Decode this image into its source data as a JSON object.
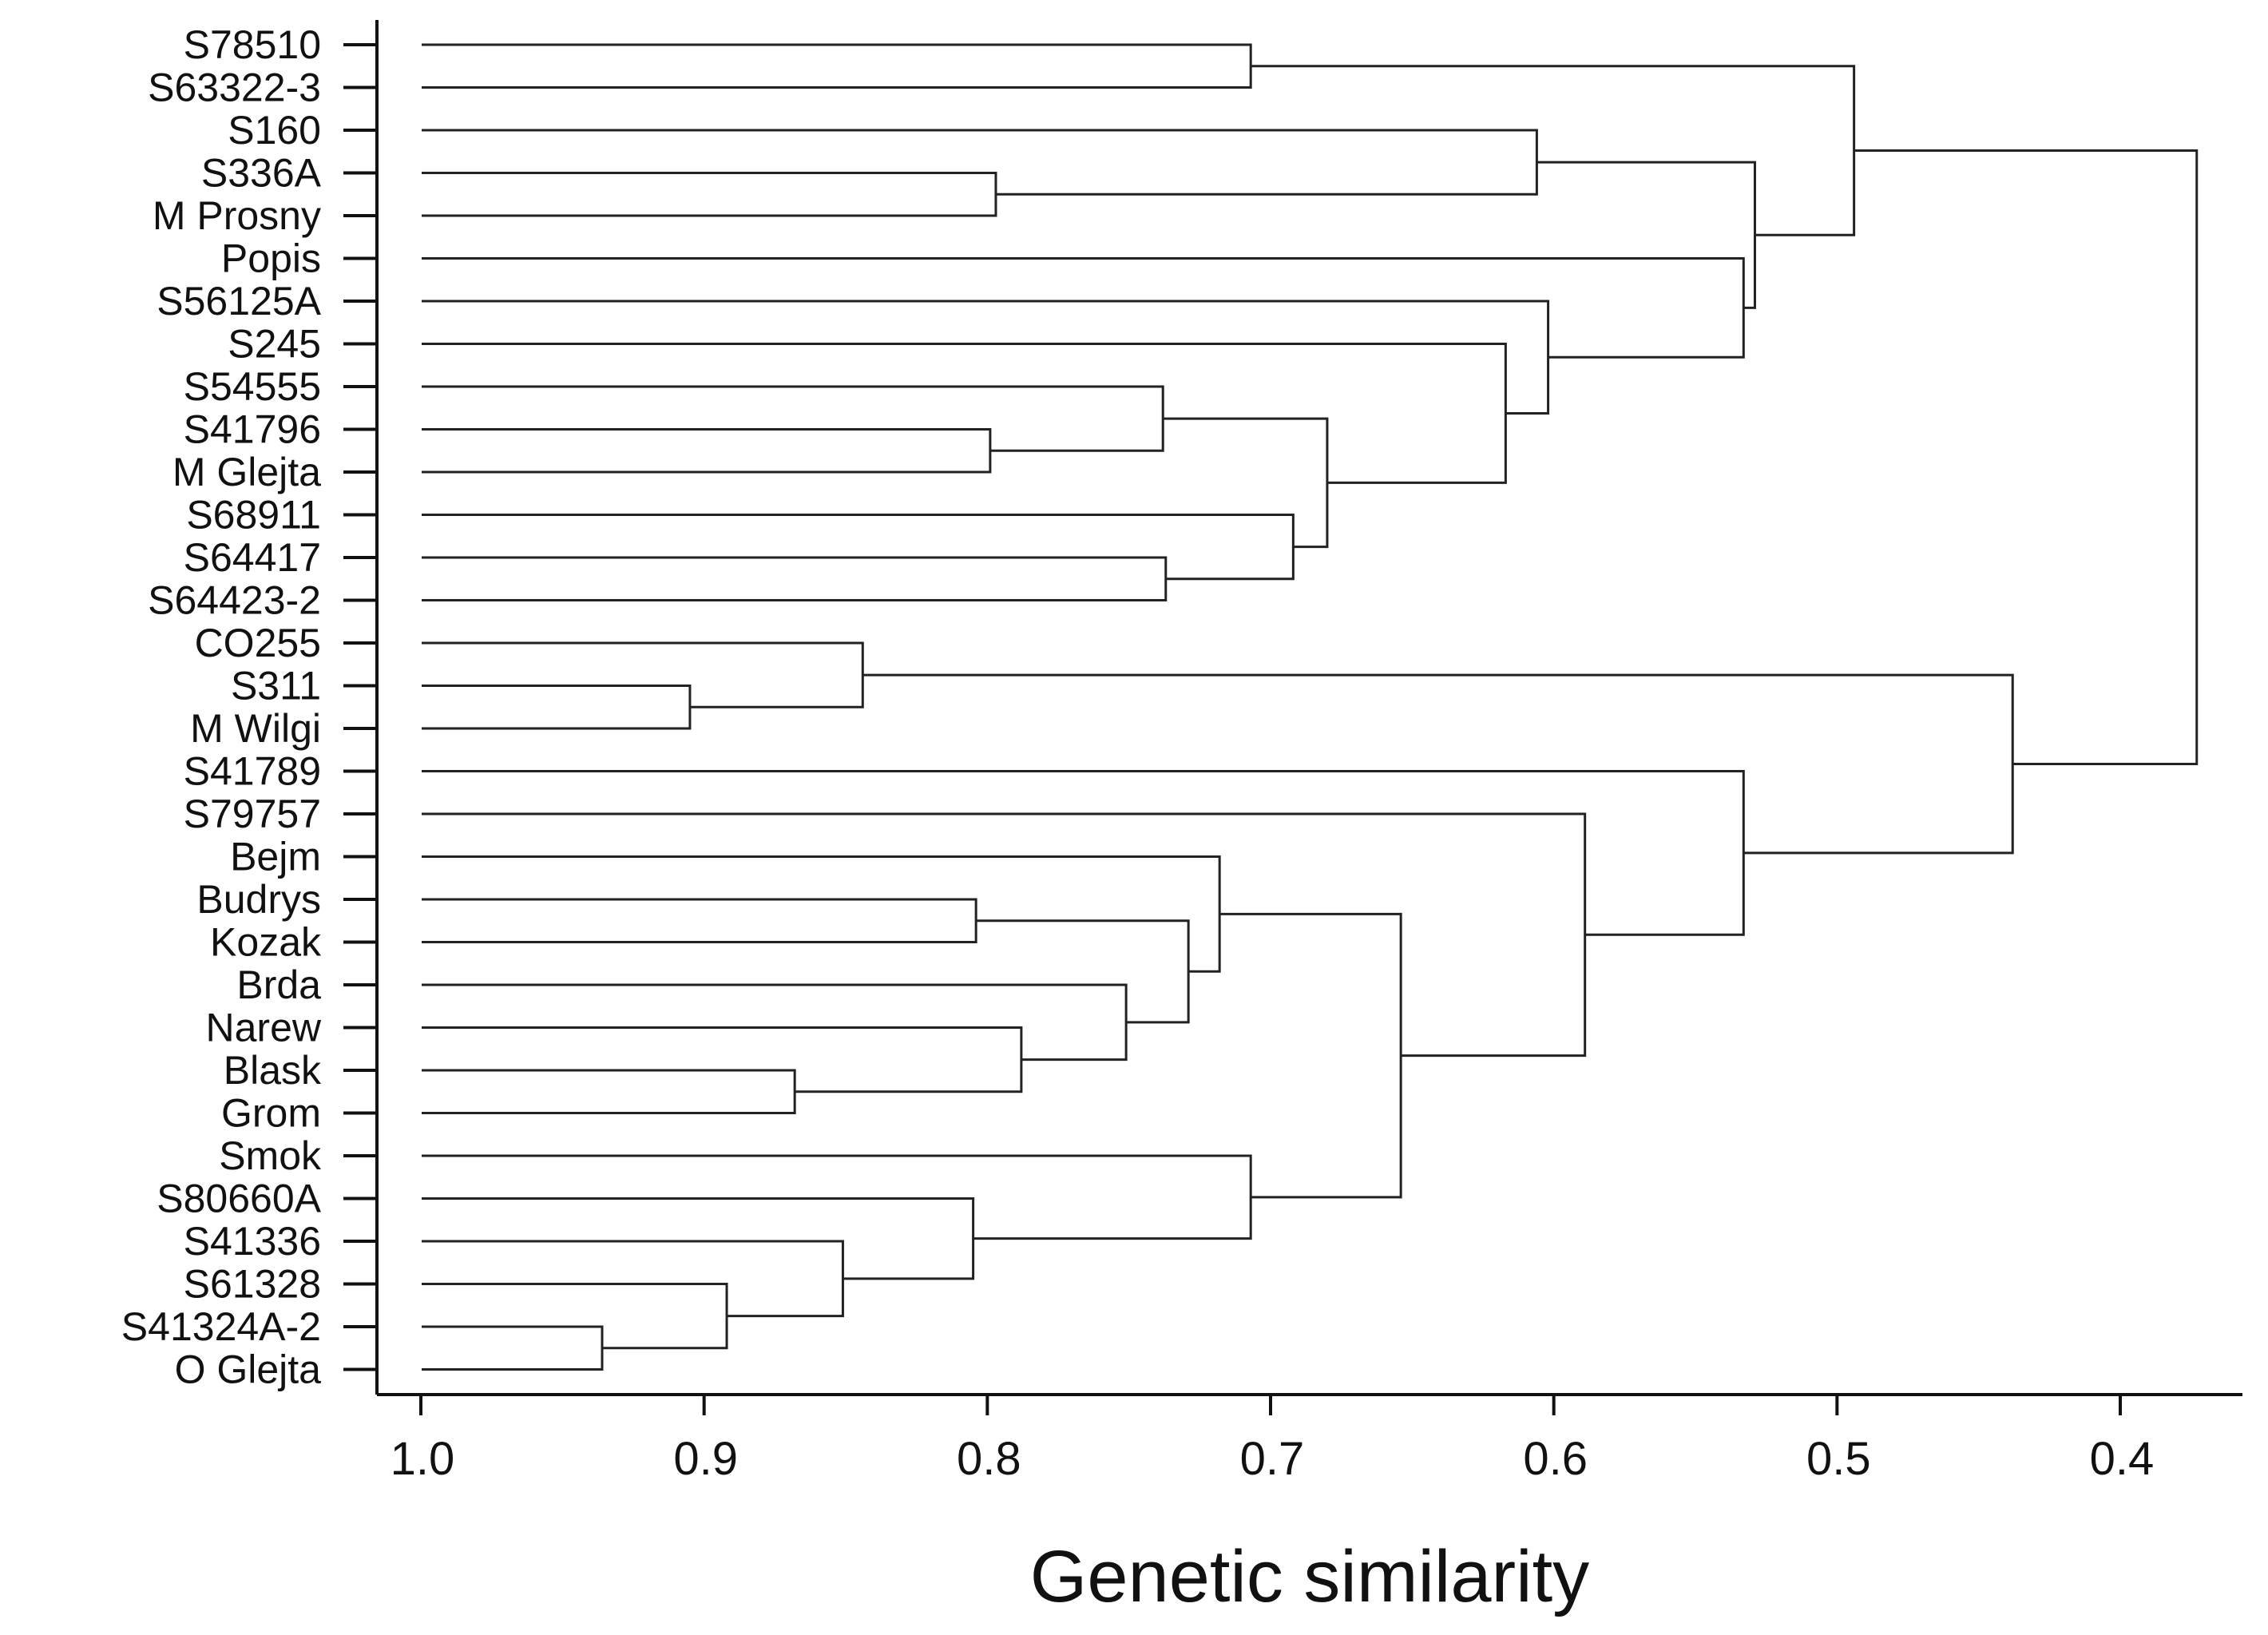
{
  "chart_data": {
    "type": "dendrogram",
    "title": "",
    "xlabel": "Genetic similarity",
    "ylabel": "",
    "xlim": [
      1.0,
      0.35
    ],
    "x_ticks": [
      {
        "value": 1.0,
        "label": "1.0"
      },
      {
        "value": 0.9,
        "label": "0.9"
      },
      {
        "value": 0.8,
        "label": "0.8"
      },
      {
        "value": 0.7,
        "label": "0.7"
      },
      {
        "value": 0.6,
        "label": "0.6"
      },
      {
        "value": 0.5,
        "label": "0.5"
      },
      {
        "value": 0.4,
        "label": "0.4"
      }
    ],
    "leaves": [
      "S78510",
      "S63322-3",
      "S160",
      "S336A",
      "M Prosny",
      "Popis",
      "S56125A",
      "S245",
      "S54555",
      "S41796",
      "M Glejta",
      "S68911",
      "S64417",
      "S64423-2",
      "CO255",
      "S311",
      "M Wilgi",
      "S41789",
      "S79757",
      "Bejm",
      "Budrys",
      "Kozak",
      "Brda",
      "Narew",
      "Blask",
      "Grom",
      "Smok",
      "S80660A",
      "S41336",
      "S61328",
      "S41324A-2",
      "O Glejta"
    ],
    "merges": [
      {
        "id": "n1",
        "left": "S78510",
        "right": "S63322-3",
        "similarity": 0.707
      },
      {
        "id": "n2",
        "left": "S336A",
        "right": "M Prosny",
        "similarity": 0.797
      },
      {
        "id": "n3",
        "left": "S160",
        "right": "n2",
        "similarity": 0.606
      },
      {
        "id": "n4",
        "left": "S41796",
        "right": "M Glejta",
        "similarity": 0.799
      },
      {
        "id": "n5",
        "left": "S54555",
        "right": "n4",
        "similarity": 0.738
      },
      {
        "id": "n6",
        "left": "S64417",
        "right": "S64423-2",
        "similarity": 0.737
      },
      {
        "id": "n7",
        "left": "S68911",
        "right": "n6",
        "similarity": 0.692
      },
      {
        "id": "n8",
        "left": "n5",
        "right": "n7",
        "similarity": 0.68
      },
      {
        "id": "n9",
        "left": "S245",
        "right": "n8",
        "similarity": 0.617
      },
      {
        "id": "n10",
        "left": "S56125A",
        "right": "n9",
        "similarity": 0.602
      },
      {
        "id": "n11",
        "left": "Popis",
        "right": "n10",
        "similarity": 0.533
      },
      {
        "id": "n12",
        "left": "n3",
        "right": "n11",
        "similarity": 0.529
      },
      {
        "id": "n13",
        "left": "n1",
        "right": "n12",
        "similarity": 0.494
      },
      {
        "id": "n14",
        "left": "S311",
        "right": "M Wilgi",
        "similarity": 0.905
      },
      {
        "id": "n15",
        "left": "CO255",
        "right": "n14",
        "similarity": 0.844
      },
      {
        "id": "n16",
        "left": "Budrys",
        "right": "Kozak",
        "similarity": 0.804
      },
      {
        "id": "n17",
        "left": "Blask",
        "right": "Grom",
        "similarity": 0.868
      },
      {
        "id": "n18",
        "left": "Narew",
        "right": "n17",
        "similarity": 0.788
      },
      {
        "id": "n19",
        "left": "Brda",
        "right": "n18",
        "similarity": 0.751
      },
      {
        "id": "n20",
        "left": "n16",
        "right": "n19",
        "similarity": 0.729
      },
      {
        "id": "n21",
        "left": "Bejm",
        "right": "n20",
        "similarity": 0.718
      },
      {
        "id": "n22",
        "left": "S41324A-2",
        "right": "O Glejta",
        "similarity": 0.936
      },
      {
        "id": "n23",
        "left": "S61328",
        "right": "n22",
        "similarity": 0.892
      },
      {
        "id": "n24",
        "left": "S41336",
        "right": "n23",
        "similarity": 0.851
      },
      {
        "id": "n25",
        "left": "S80660A",
        "right": "n24",
        "similarity": 0.805
      },
      {
        "id": "n26",
        "left": "Smok",
        "right": "n25",
        "similarity": 0.707
      },
      {
        "id": "n27",
        "left": "n21",
        "right": "n26",
        "similarity": 0.654
      },
      {
        "id": "n28",
        "left": "S79757",
        "right": "n27",
        "similarity": 0.589
      },
      {
        "id": "n29",
        "left": "S41789",
        "right": "n28",
        "similarity": 0.533
      },
      {
        "id": "n30",
        "left": "n15",
        "right": "n29",
        "similarity": 0.438
      },
      {
        "id": "n31",
        "left": "n13",
        "right": "n30",
        "similarity": 0.373
      }
    ]
  }
}
